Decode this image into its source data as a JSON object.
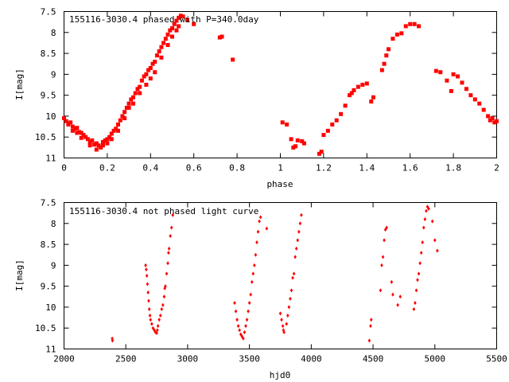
{
  "colors": {
    "points": "#ff0000",
    "axes": "#000000",
    "background": "#ffffff"
  },
  "chart_data": [
    {
      "type": "scatter",
      "title": "155116-3030.4 phased with P=340.0day",
      "xlabel": "phase",
      "ylabel": "I[mag]",
      "xlim": [
        0,
        2
      ],
      "ylim": [
        7.5,
        11
      ],
      "y_inverted": true,
      "grid": false,
      "marker": "filled-square",
      "x_ticks": [
        0,
        0.2,
        0.4,
        0.6,
        0.8,
        1,
        1.2,
        1.4,
        1.6,
        1.8,
        2
      ],
      "x_tick_labels": [
        "0",
        "0.2",
        "0.4",
        "0.6",
        "0.8",
        "1",
        "1.2",
        "1.4",
        "1.6",
        "1.8",
        "2"
      ],
      "y_ticks": [
        7.5,
        8,
        8.5,
        9,
        9.5,
        10,
        10.5,
        11
      ],
      "y_tick_labels": [
        "7.5",
        "8",
        "8.5",
        "9",
        "9.5",
        "10",
        "10.5",
        "11"
      ],
      "points": [
        [
          0.0,
          10.05
        ],
        [
          0.01,
          10.12
        ],
        [
          0.02,
          10.18
        ],
        [
          0.03,
          10.15
        ],
        [
          0.04,
          10.25
        ],
        [
          0.05,
          10.3
        ],
        [
          0.06,
          10.28
        ],
        [
          0.07,
          10.38
        ],
        [
          0.08,
          10.4
        ],
        [
          0.09,
          10.45
        ],
        [
          0.1,
          10.5
        ],
        [
          0.11,
          10.55
        ],
        [
          0.12,
          10.62
        ],
        [
          0.13,
          10.58
        ],
        [
          0.14,
          10.68
        ],
        [
          0.15,
          10.65
        ],
        [
          0.16,
          10.7
        ],
        [
          0.17,
          10.75
        ],
        [
          0.18,
          10.62
        ],
        [
          0.19,
          10.58
        ],
        [
          0.2,
          10.55
        ],
        [
          0.21,
          10.5
        ],
        [
          0.22,
          10.42
        ],
        [
          0.23,
          10.35
        ],
        [
          0.24,
          10.3
        ],
        [
          0.25,
          10.2
        ],
        [
          0.26,
          10.1
        ],
        [
          0.27,
          10.0
        ],
        [
          0.28,
          9.9
        ],
        [
          0.29,
          9.8
        ],
        [
          0.3,
          9.7
        ],
        [
          0.31,
          9.6
        ],
        [
          0.32,
          9.55
        ],
        [
          0.33,
          9.45
        ],
        [
          0.34,
          9.35
        ],
        [
          0.35,
          9.3
        ],
        [
          0.36,
          9.15
        ],
        [
          0.37,
          9.05
        ],
        [
          0.38,
          9.0
        ],
        [
          0.39,
          8.9
        ],
        [
          0.4,
          8.85
        ],
        [
          0.41,
          8.75
        ],
        [
          0.42,
          8.7
        ],
        [
          0.43,
          8.55
        ],
        [
          0.44,
          8.45
        ],
        [
          0.45,
          8.35
        ],
        [
          0.46,
          8.25
        ],
        [
          0.47,
          8.15
        ],
        [
          0.48,
          8.05
        ],
        [
          0.49,
          7.95
        ],
        [
          0.5,
          7.9
        ],
        [
          0.51,
          7.8
        ],
        [
          0.52,
          7.72
        ],
        [
          0.53,
          7.65
        ],
        [
          0.54,
          7.6
        ],
        [
          0.55,
          7.62
        ],
        [
          0.57,
          7.7
        ],
        [
          0.6,
          7.8
        ],
        [
          0.72,
          8.12
        ],
        [
          0.73,
          8.1
        ],
        [
          0.78,
          8.65
        ],
        [
          0.02,
          10.2
        ],
        [
          0.04,
          10.35
        ],
        [
          0.06,
          10.4
        ],
        [
          0.08,
          10.52
        ],
        [
          0.12,
          10.7
        ],
        [
          0.15,
          10.8
        ],
        [
          0.18,
          10.7
        ],
        [
          0.2,
          10.65
        ],
        [
          0.22,
          10.55
        ],
        [
          0.25,
          10.35
        ],
        [
          0.28,
          10.05
        ],
        [
          0.3,
          9.8
        ],
        [
          0.32,
          9.7
        ],
        [
          0.35,
          9.45
        ],
        [
          0.38,
          9.25
        ],
        [
          0.4,
          9.1
        ],
        [
          0.42,
          8.95
        ],
        [
          0.45,
          8.6
        ],
        [
          0.48,
          8.3
        ],
        [
          0.5,
          8.1
        ],
        [
          0.52,
          7.95
        ],
        [
          0.53,
          7.85
        ],
        [
          1.01,
          10.15
        ],
        [
          1.03,
          10.2
        ],
        [
          1.05,
          10.55
        ],
        [
          1.06,
          10.75
        ],
        [
          1.07,
          10.72
        ],
        [
          1.08,
          10.58
        ],
        [
          1.1,
          10.6
        ],
        [
          1.11,
          10.65
        ],
        [
          1.18,
          10.9
        ],
        [
          1.19,
          10.85
        ],
        [
          1.2,
          10.45
        ],
        [
          1.22,
          10.35
        ],
        [
          1.24,
          10.2
        ],
        [
          1.26,
          10.1
        ],
        [
          1.28,
          9.95
        ],
        [
          1.3,
          9.75
        ],
        [
          1.32,
          9.5
        ],
        [
          1.33,
          9.45
        ],
        [
          1.34,
          9.38
        ],
        [
          1.36,
          9.3
        ],
        [
          1.38,
          9.25
        ],
        [
          1.4,
          9.22
        ],
        [
          1.42,
          9.65
        ],
        [
          1.43,
          9.55
        ],
        [
          1.47,
          8.9
        ],
        [
          1.48,
          8.75
        ],
        [
          1.49,
          8.55
        ],
        [
          1.5,
          8.4
        ],
        [
          1.52,
          8.15
        ],
        [
          1.54,
          8.05
        ],
        [
          1.56,
          8.02
        ],
        [
          1.58,
          7.85
        ],
        [
          1.6,
          7.8
        ],
        [
          1.62,
          7.8
        ],
        [
          1.64,
          7.85
        ],
        [
          1.72,
          8.92
        ],
        [
          1.74,
          8.95
        ],
        [
          1.77,
          9.15
        ],
        [
          1.79,
          9.4
        ],
        [
          1.8,
          9.0
        ],
        [
          1.82,
          9.05
        ],
        [
          1.84,
          9.2
        ],
        [
          1.86,
          9.35
        ],
        [
          1.88,
          9.5
        ],
        [
          1.9,
          9.6
        ],
        [
          1.92,
          9.7
        ],
        [
          1.94,
          9.85
        ],
        [
          1.96,
          10.0
        ],
        [
          1.97,
          10.1
        ],
        [
          1.98,
          10.05
        ],
        [
          1.99,
          10.15
        ],
        [
          2.0,
          10.12
        ]
      ]
    },
    {
      "type": "scatter",
      "title": "155116-3030.4 not phased light curve",
      "xlabel": "hjd0",
      "ylabel": "I[mag]",
      "xlim": [
        2000,
        5500
      ],
      "ylim": [
        7.5,
        11
      ],
      "y_inverted": true,
      "grid": false,
      "marker": "small-diamond",
      "x_ticks": [
        2000,
        2500,
        3000,
        3500,
        4000,
        4500,
        5000,
        5500
      ],
      "x_tick_labels": [
        "2000",
        "2500",
        "3000",
        "3500",
        "4000",
        "4500",
        "5000",
        "5500"
      ],
      "y_ticks": [
        7.5,
        8,
        8.5,
        9,
        9.5,
        10,
        10.5,
        11
      ],
      "y_tick_labels": [
        "7.5",
        "8",
        "8.5",
        "9",
        "9.5",
        "10",
        "10.5",
        "11"
      ],
      "points": [
        [
          2390,
          10.75
        ],
        [
          2392,
          10.8
        ],
        [
          2660,
          9.0
        ],
        [
          2665,
          9.1
        ],
        [
          2670,
          9.25
        ],
        [
          2675,
          9.45
        ],
        [
          2680,
          9.65
        ],
        [
          2685,
          9.85
        ],
        [
          2690,
          10.05
        ],
        [
          2695,
          10.2
        ],
        [
          2700,
          10.3
        ],
        [
          2710,
          10.4
        ],
        [
          2720,
          10.5
        ],
        [
          2730,
          10.55
        ],
        [
          2740,
          10.6
        ],
        [
          2750,
          10.62
        ],
        [
          2755,
          10.55
        ],
        [
          2760,
          10.45
        ],
        [
          2770,
          10.3
        ],
        [
          2780,
          10.2
        ],
        [
          2790,
          10.05
        ],
        [
          2800,
          9.95
        ],
        [
          2810,
          9.75
        ],
        [
          2815,
          9.55
        ],
        [
          2820,
          9.5
        ],
        [
          2830,
          9.2
        ],
        [
          2840,
          8.95
        ],
        [
          2845,
          8.7
        ],
        [
          2850,
          8.6
        ],
        [
          2860,
          8.3
        ],
        [
          2870,
          8.1
        ],
        [
          2880,
          7.8
        ],
        [
          3380,
          9.9
        ],
        [
          3390,
          10.1
        ],
        [
          3400,
          10.3
        ],
        [
          3410,
          10.45
        ],
        [
          3420,
          10.55
        ],
        [
          3430,
          10.65
        ],
        [
          3440,
          10.7
        ],
        [
          3450,
          10.75
        ],
        [
          3460,
          10.6
        ],
        [
          3470,
          10.45
        ],
        [
          3480,
          10.3
        ],
        [
          3490,
          10.1
        ],
        [
          3500,
          9.9
        ],
        [
          3510,
          9.7
        ],
        [
          3520,
          9.4
        ],
        [
          3530,
          9.2
        ],
        [
          3540,
          9.0
        ],
        [
          3550,
          8.75
        ],
        [
          3560,
          8.45
        ],
        [
          3570,
          8.2
        ],
        [
          3580,
          7.95
        ],
        [
          3590,
          7.85
        ],
        [
          3640,
          8.12
        ],
        [
          3750,
          10.15
        ],
        [
          3760,
          10.3
        ],
        [
          3770,
          10.45
        ],
        [
          3775,
          10.55
        ],
        [
          3780,
          10.6
        ],
        [
          3800,
          10.4
        ],
        [
          3810,
          10.2
        ],
        [
          3820,
          10.0
        ],
        [
          3830,
          9.8
        ],
        [
          3840,
          9.6
        ],
        [
          3850,
          9.3
        ],
        [
          3860,
          9.2
        ],
        [
          3870,
          8.8
        ],
        [
          3880,
          8.6
        ],
        [
          3890,
          8.4
        ],
        [
          3900,
          8.2
        ],
        [
          3910,
          8.0
        ],
        [
          3920,
          7.8
        ],
        [
          4470,
          10.8
        ],
        [
          4480,
          10.45
        ],
        [
          4485,
          10.3
        ],
        [
          4560,
          9.6
        ],
        [
          4570,
          9.0
        ],
        [
          4580,
          8.8
        ],
        [
          4590,
          8.4
        ],
        [
          4600,
          8.15
        ],
        [
          4610,
          8.1
        ],
        [
          4650,
          9.4
        ],
        [
          4660,
          9.7
        ],
        [
          4700,
          9.95
        ],
        [
          4720,
          9.75
        ],
        [
          4830,
          10.05
        ],
        [
          4840,
          9.9
        ],
        [
          4850,
          9.6
        ],
        [
          4860,
          9.35
        ],
        [
          4870,
          9.2
        ],
        [
          4880,
          8.95
        ],
        [
          4890,
          8.7
        ],
        [
          4900,
          8.45
        ],
        [
          4910,
          8.1
        ],
        [
          4920,
          7.9
        ],
        [
          4930,
          7.7
        ],
        [
          4940,
          7.6
        ],
        [
          4950,
          7.65
        ],
        [
          4980,
          7.95
        ],
        [
          5000,
          8.4
        ],
        [
          5020,
          8.65
        ]
      ]
    }
  ]
}
